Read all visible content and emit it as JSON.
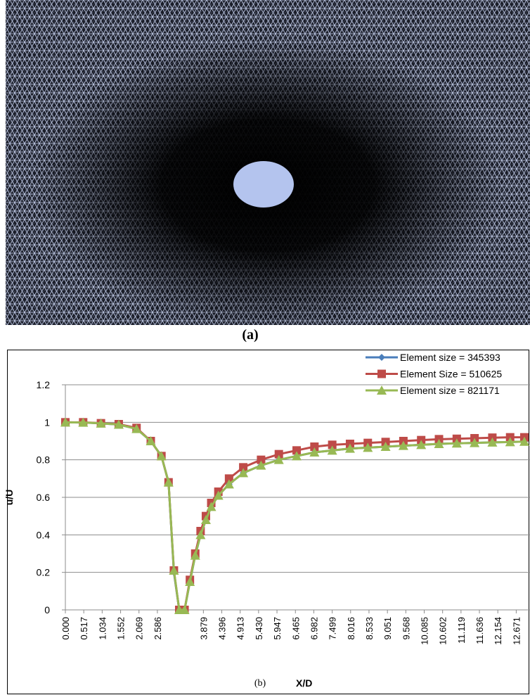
{
  "panel_a_label": "(a)",
  "chart_data": {
    "type": "line",
    "caption": "(b)",
    "x_label": "X/D",
    "y_label": "u/U",
    "x": [
      0,
      0.5,
      1,
      1.5,
      2,
      2.4,
      2.7,
      2.9,
      3.05,
      3.2,
      3.35,
      3.5,
      3.65,
      3.8,
      3.95,
      4.1,
      4.3,
      4.6,
      5,
      5.5,
      6,
      6.5,
      7,
      7.5,
      8,
      8.5,
      9,
      9.5,
      10,
      10.5,
      11,
      11.5,
      12,
      12.5,
      12.9
    ],
    "series": [
      {
        "name": "Element size = 345393",
        "color": "#4a7ebb",
        "marker": "diamond",
        "values": [
          1,
          0.999,
          0.994,
          0.988,
          0.965,
          0.9,
          0.82,
          0.68,
          0.2,
          0,
          0,
          0.15,
          0.29,
          0.4,
          0.48,
          0.55,
          0.61,
          0.67,
          0.73,
          0.77,
          0.8,
          0.82,
          0.84,
          0.85,
          0.86,
          0.865,
          0.87,
          0.875,
          0.88,
          0.885,
          0.888,
          0.89,
          0.893,
          0.895,
          0.897
        ]
      },
      {
        "name": "Element Size = 510625",
        "color": "#be4b48",
        "marker": "square",
        "values": [
          1,
          1,
          0.995,
          0.99,
          0.97,
          0.9,
          0.82,
          0.68,
          0.21,
          0,
          0,
          0.16,
          0.3,
          0.42,
          0.5,
          0.57,
          0.63,
          0.7,
          0.76,
          0.8,
          0.83,
          0.85,
          0.87,
          0.88,
          0.885,
          0.89,
          0.895,
          0.9,
          0.905,
          0.91,
          0.912,
          0.915,
          0.918,
          0.92,
          0.92
        ]
      },
      {
        "name": "Element size = 821171",
        "color": "#98b954",
        "marker": "triangle",
        "values": [
          1,
          0.999,
          0.994,
          0.988,
          0.965,
          0.9,
          0.82,
          0.68,
          0.21,
          0,
          0,
          0.15,
          0.29,
          0.4,
          0.48,
          0.55,
          0.61,
          0.67,
          0.73,
          0.77,
          0.8,
          0.82,
          0.84,
          0.85,
          0.86,
          0.865,
          0.87,
          0.875,
          0.88,
          0.885,
          0.888,
          0.89,
          0.893,
          0.895,
          0.897
        ]
      }
    ],
    "xlim": [
      0,
      12.9
    ],
    "xticks": [
      {
        "value": 0,
        "label": "0.000"
      },
      {
        "value": 0.517,
        "label": "0.517"
      },
      {
        "value": 1.034,
        "label": "1.034"
      },
      {
        "value": 1.552,
        "label": "1.552"
      },
      {
        "value": 2.069,
        "label": "2.069"
      },
      {
        "value": 2.586,
        "label": "2.586"
      },
      {
        "value": 3.879,
        "label": "3.879"
      },
      {
        "value": 4.396,
        "label": "4.396"
      },
      {
        "value": 4.913,
        "label": "4.913"
      },
      {
        "value": 5.43,
        "label": "5.430"
      },
      {
        "value": 5.947,
        "label": "5.947"
      },
      {
        "value": 6.465,
        "label": "6.465"
      },
      {
        "value": 6.982,
        "label": "6.982"
      },
      {
        "value": 7.499,
        "label": "7.499"
      },
      {
        "value": 8.016,
        "label": "8.016"
      },
      {
        "value": 8.533,
        "label": "8.533"
      },
      {
        "value": 9.051,
        "label": "9.051"
      },
      {
        "value": 9.568,
        "label": "9.568"
      },
      {
        "value": 10.085,
        "label": "10.085"
      },
      {
        "value": 10.602,
        "label": "10.602"
      },
      {
        "value": 11.119,
        "label": "11.119"
      },
      {
        "value": 11.636,
        "label": "11.636"
      },
      {
        "value": 12.154,
        "label": "12.154"
      },
      {
        "value": 12.671,
        "label": "12.671"
      }
    ],
    "ylim": [
      0,
      1.2
    ],
    "yticks": [
      0,
      0.2,
      0.4,
      0.6,
      0.8,
      1,
      1.2
    ],
    "grid": true,
    "legend": "top-right"
  }
}
